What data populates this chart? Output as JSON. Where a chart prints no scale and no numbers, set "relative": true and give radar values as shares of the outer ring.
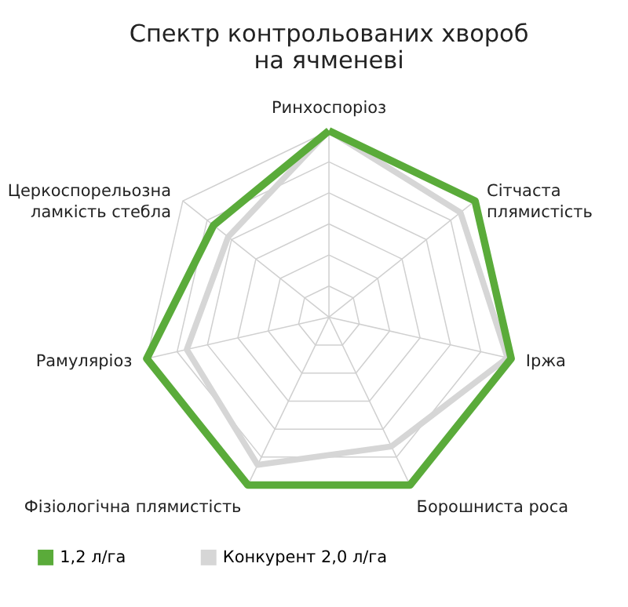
{
  "chart_data": {
    "type": "radar",
    "title": "Спектр контрольованих хвороб\nна ячменеві",
    "relative": true,
    "grid": true,
    "legend": "bottom",
    "line_style": "solid",
    "marker": "none",
    "categories": [
      "Ринхоспоріоз",
      "Сітчаста плямистість",
      "Іржа",
      "Борошниста роса",
      "Фізіологічна плямистість",
      "Рамуляріоз",
      "Церкоспорельозна ламкість стебла"
    ],
    "series": [
      {
        "name": "1,2 л/га",
        "color": "#5aab3a",
        "values": [
          1.0,
          1.0,
          1.0,
          1.0,
          1.0,
          1.0,
          0.79
        ]
      },
      {
        "name": "Конкурент 2,0 л/га",
        "color": "#d6d6d6",
        "values": [
          1.0,
          0.9,
          0.98,
          0.77,
          0.88,
          0.78,
          0.69
        ]
      }
    ]
  }
}
